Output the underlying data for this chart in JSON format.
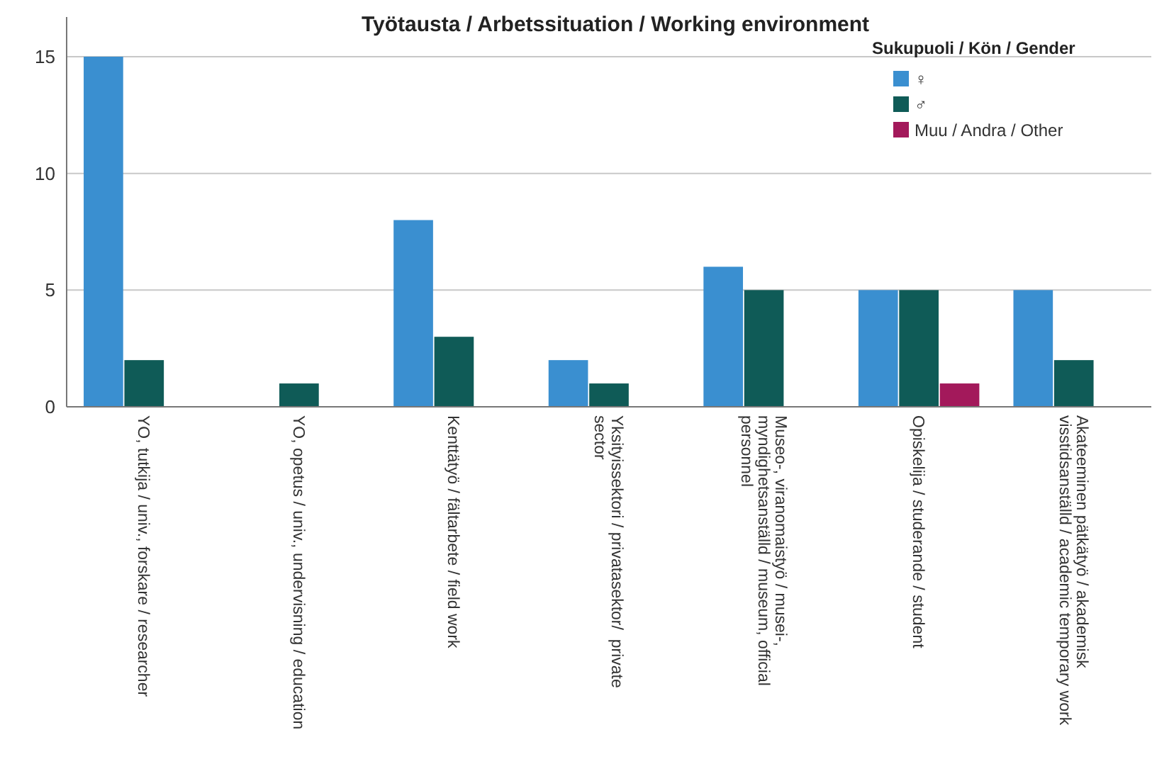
{
  "chart_data": {
    "type": "bar",
    "title": "Työtausta / Arbetssituation / Working environment",
    "legend_title": "Sukupuoli  / Kön / Gender",
    "categories": [
      "YO, tutkija / univ., forskare / researcher",
      "YO, opetus / univ., undervisning / education",
      "Kenttätyö / fältarbete / field work",
      "Yksityissektori / privatasektor/  private sector",
      "Museo-, viranomaistyö / musei-, myndighetsanställd / museum, official personnel",
      "Opiskelija / studerande / student",
      "Akateeminen pätkätyö / akademisk visstidsanställd / academic temporary work"
    ],
    "series": [
      {
        "name": "♀",
        "color": "#3a8fd0",
        "values": [
          15,
          0,
          8,
          2,
          6,
          5,
          5
        ]
      },
      {
        "name": "♂",
        "color": "#0f5b57",
        "values": [
          2,
          1,
          3,
          1,
          5,
          5,
          2
        ]
      },
      {
        "name": "Muu / Andra / Other",
        "color": "#a3195b",
        "values": [
          0,
          0,
          0,
          0,
          0,
          1,
          0
        ]
      }
    ],
    "ylim": [
      0,
      16.7
    ],
    "yticks": [
      0,
      5,
      10,
      15
    ],
    "grid": "y",
    "legend": "top right"
  }
}
